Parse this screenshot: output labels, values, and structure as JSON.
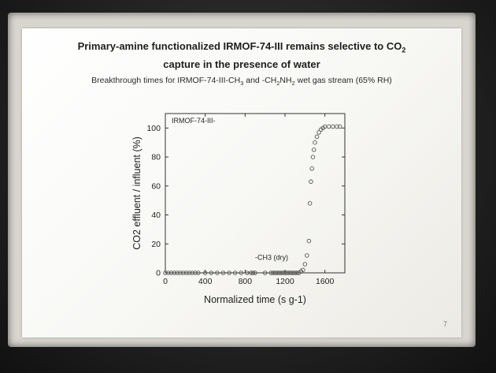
{
  "slide": {
    "title_line1": "Primary-amine functionalized IRMOF-74-III remains selective to CO",
    "title_line1_sub": "2",
    "title_line2": "capture in the presence of water",
    "subtitle_part1": "Breakthrough times for IRMOF-74-III-CH",
    "subtitle_sub1": "3",
    "subtitle_part2": " and -CH",
    "subtitle_sub2": "2",
    "subtitle_part3": "NH",
    "subtitle_sub3": "2",
    "subtitle_part4": " wet gas stream (65% RH)",
    "page_number": "7"
  },
  "chart_data": {
    "type": "scatter",
    "title": "",
    "xlabel": "Normalized time (s g-1)",
    "ylabel": "CO2 effluent / influent (%)",
    "xlim": [
      0,
      1800
    ],
    "ylim": [
      0,
      110
    ],
    "x_ticks": [
      0,
      400,
      800,
      1200,
      1600
    ],
    "y_ticks": [
      0,
      20,
      40,
      60,
      80,
      100
    ],
    "annotations": [
      "IRMOF-74-III-",
      "-CH3 (dry)"
    ],
    "series": [
      {
        "name": "-CH3 (dry)",
        "x": [
          0,
          30,
          60,
          90,
          120,
          150,
          180,
          210,
          240,
          270,
          300,
          330,
          400,
          460,
          520,
          580,
          640,
          700,
          760,
          820,
          860,
          880,
          900,
          1000,
          1060,
          1080,
          1100,
          1120,
          1140,
          1160,
          1180,
          1200,
          1220,
          1240,
          1260,
          1280,
          1300,
          1320,
          1340,
          1360,
          1380,
          1400,
          1420,
          1440,
          1450,
          1460,
          1470,
          1480,
          1490,
          1500,
          1520,
          1540,
          1560,
          1580,
          1600,
          1640,
          1680,
          1720,
          1750
        ],
        "y": [
          0,
          0,
          0,
          0,
          0,
          0,
          0,
          0,
          0,
          0,
          0,
          0,
          0,
          0,
          0,
          0,
          0,
          0,
          0,
          0,
          0,
          0,
          0,
          0,
          0,
          0,
          0,
          0,
          0,
          0,
          0,
          0,
          0,
          0,
          0,
          0,
          0,
          0,
          0,
          1,
          2,
          6,
          12,
          22,
          48,
          63,
          72,
          80,
          85,
          90,
          94,
          97,
          99,
          100,
          101,
          101,
          101,
          101,
          101
        ],
        "color": "#555555"
      }
    ],
    "grid": false
  },
  "colors": {
    "slide_background": "#f7f7f4",
    "frame": "#d9d6cf",
    "room": "#1d1d1d"
  }
}
